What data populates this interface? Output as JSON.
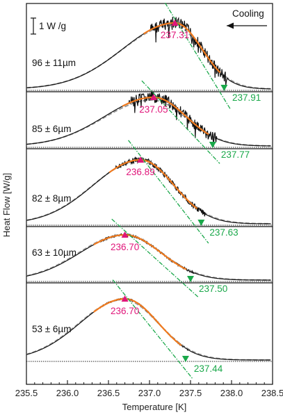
{
  "chart_data": {
    "type": "line",
    "xlabel": "Temperature [K]",
    "ylabel": "Heat Flow [W/g]",
    "xlim": [
      235.5,
      238.5
    ],
    "x_ticks": [
      "235.5",
      "236.0",
      "236.5",
      "237.0",
      "237.5",
      "238.0",
      "238.5"
    ],
    "scale_bar_label": "1 W /g",
    "direction_label": "Cooling",
    "colors": {
      "measured": "#111111",
      "model": "#9a9a9a",
      "fit": "#f07a1e",
      "peak": "#e0157a",
      "onset": "#1aa84a",
      "baseline": "#222222"
    },
    "panels": [
      {
        "size_label": "96 ± 11µm",
        "peak_label": "237.31",
        "onset_label": "237.91",
        "peak_T": 237.31,
        "onset_T": 237.91
      },
      {
        "size_label": "85 ± 6µm",
        "peak_label": "237.05",
        "onset_label": "237.77",
        "peak_T": 237.05,
        "onset_T": 237.77
      },
      {
        "size_label": "82 ± 8µm",
        "peak_label": "236.89",
        "onset_label": "237.63",
        "peak_T": 236.89,
        "onset_T": 237.63
      },
      {
        "size_label": "63 ± 10µm",
        "peak_label": "236.70",
        "onset_label": "237.50",
        "peak_T": 236.7,
        "onset_T": 237.5
      },
      {
        "size_label": "53 ± 6µm",
        "peak_label": "236.70",
        "onset_label": "237.44",
        "peak_T": 236.7,
        "onset_T": 237.44
      }
    ]
  }
}
